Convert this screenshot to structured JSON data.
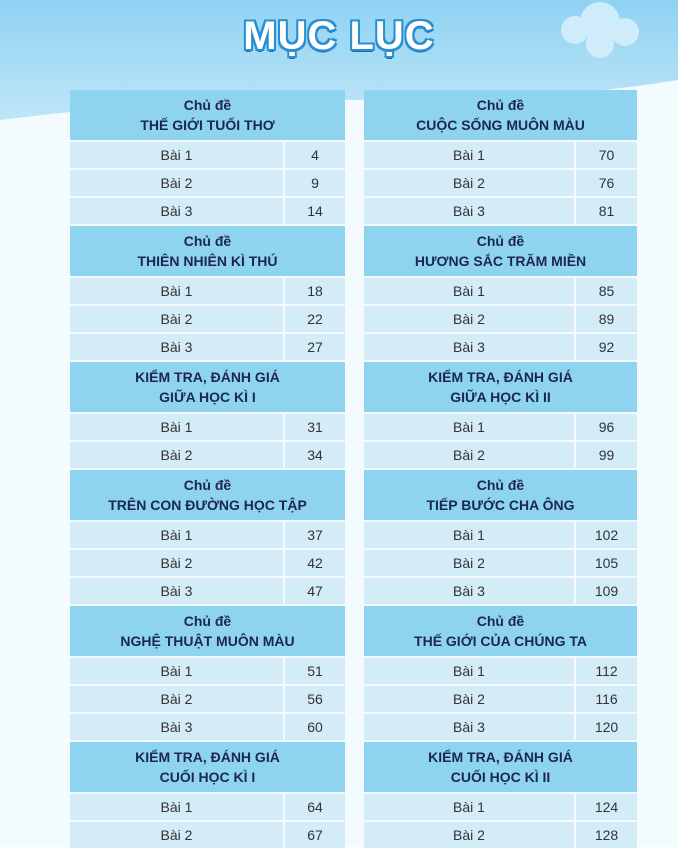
{
  "title": "MỤC LỤC",
  "columns": [
    {
      "sections": [
        {
          "heading": [
            "Chủ đề",
            "THẾ GIỚI TUỔI THƠ"
          ],
          "rows": [
            [
              "Bài 1",
              4
            ],
            [
              "Bài 2",
              9
            ],
            [
              "Bài 3",
              14
            ]
          ]
        },
        {
          "heading": [
            "Chủ đề",
            "THIÊN NHIÊN KÌ THÚ"
          ],
          "rows": [
            [
              "Bài 1",
              18
            ],
            [
              "Bài 2",
              22
            ],
            [
              "Bài 3",
              27
            ]
          ]
        },
        {
          "heading": [
            "KIỂM TRA, ĐÁNH GIÁ",
            "GIỮA HỌC KÌ I"
          ],
          "rows": [
            [
              "Bài 1",
              31
            ],
            [
              "Bài 2",
              34
            ]
          ]
        },
        {
          "heading": [
            "Chủ đề",
            "TRÊN CON ĐƯỜNG HỌC TẬP"
          ],
          "rows": [
            [
              "Bài 1",
              37
            ],
            [
              "Bài 2",
              42
            ],
            [
              "Bài 3",
              47
            ]
          ]
        },
        {
          "heading": [
            "Chủ đề",
            "NGHỆ THUẬT MUÔN MÀU"
          ],
          "rows": [
            [
              "Bài 1",
              51
            ],
            [
              "Bài 2",
              56
            ],
            [
              "Bài 3",
              60
            ]
          ]
        },
        {
          "heading": [
            "KIỂM TRA, ĐÁNH GIÁ",
            "CUỐI HỌC KÌ I"
          ],
          "rows": [
            [
              "Bài 1",
              64
            ],
            [
              "Bài 2",
              67
            ]
          ]
        }
      ]
    },
    {
      "sections": [
        {
          "heading": [
            "Chủ đề",
            "CUỘC SỐNG MUÔN MÀU"
          ],
          "rows": [
            [
              "Bài 1",
              70
            ],
            [
              "Bài 2",
              76
            ],
            [
              "Bài 3",
              81
            ]
          ]
        },
        {
          "heading": [
            "Chủ đề",
            "HƯƠNG SẮC TRĂM MIỀN"
          ],
          "rows": [
            [
              "Bài 1",
              85
            ],
            [
              "Bài 2",
              89
            ],
            [
              "Bài 3",
              92
            ]
          ]
        },
        {
          "heading": [
            "KIỂM TRA, ĐÁNH GIÁ",
            "GIỮA HỌC KÌ II"
          ],
          "rows": [
            [
              "Bài 1",
              96
            ],
            [
              "Bài 2",
              99
            ]
          ]
        },
        {
          "heading": [
            "Chủ đề",
            "TIẾP BƯỚC CHA ÔNG"
          ],
          "rows": [
            [
              "Bài 1",
              102
            ],
            [
              "Bài 2",
              105
            ],
            [
              "Bài 3",
              109
            ]
          ]
        },
        {
          "heading": [
            "Chủ đề",
            "THẾ GIỚI CỦA CHÚNG TA"
          ],
          "rows": [
            [
              "Bài 1",
              112
            ],
            [
              "Bài 2",
              116
            ],
            [
              "Bài 3",
              120
            ]
          ]
        },
        {
          "heading": [
            "KIỂM TRA, ĐÁNH GIÁ",
            "CUỐI HỌC KÌ II"
          ],
          "rows": [
            [
              "Bài 1",
              124
            ],
            [
              "Bài 2",
              128
            ]
          ]
        }
      ]
    }
  ]
}
